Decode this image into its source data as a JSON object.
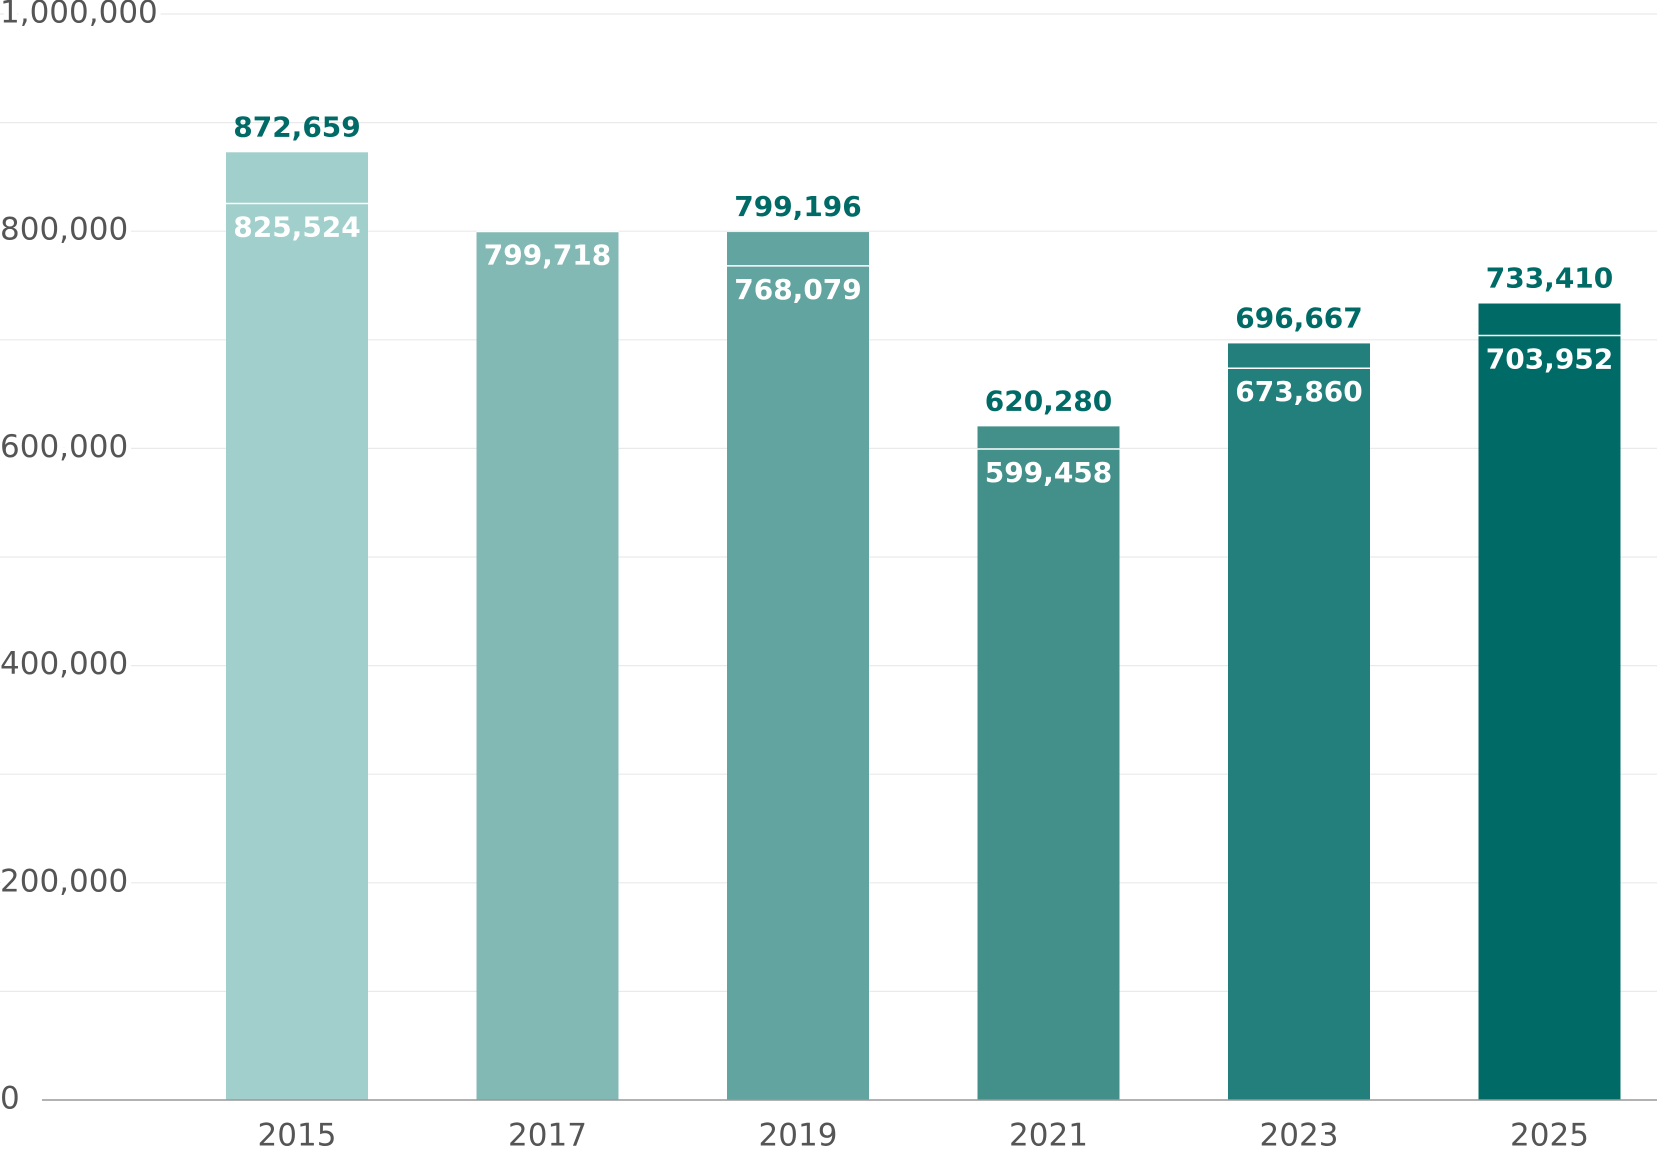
{
  "chart_data": {
    "type": "bar",
    "categories": [
      "2015",
      "2017",
      "2019",
      "2021",
      "2023",
      "2025"
    ],
    "totals": [
      872659,
      null,
      799196,
      620280,
      696667,
      733410
    ],
    "totals_value_labels": [
      "872,659",
      null,
      "799,196",
      "620,280",
      "696,667",
      "733,410"
    ],
    "values": [
      825524,
      799718,
      768079,
      599458,
      673860,
      703952
    ],
    "value_labels": [
      "825,524",
      "799,718",
      "768,079",
      "599,458",
      "673,860",
      "703,952"
    ],
    "colors": [
      "#a1cfcb",
      "#83b9b4",
      "#62a4a0",
      "#43908b",
      "#237f7b",
      "#006b66"
    ],
    "total_label_color": "#006b66",
    "ylim": [
      0,
      1000000
    ],
    "yticks": [
      0,
      {
        "value": 200000,
        "label": "200,000"
      },
      {
        "value": 400000,
        "label": "400,000"
      },
      {
        "value": 600000,
        "label": "600,000"
      },
      {
        "value": 800000,
        "label": "800,000"
      },
      {
        "value": 1000000,
        "label": "1,000,000"
      }
    ],
    "minor_yticks": [
      100000,
      300000,
      500000,
      700000,
      900000
    ],
    "grid": true
  }
}
